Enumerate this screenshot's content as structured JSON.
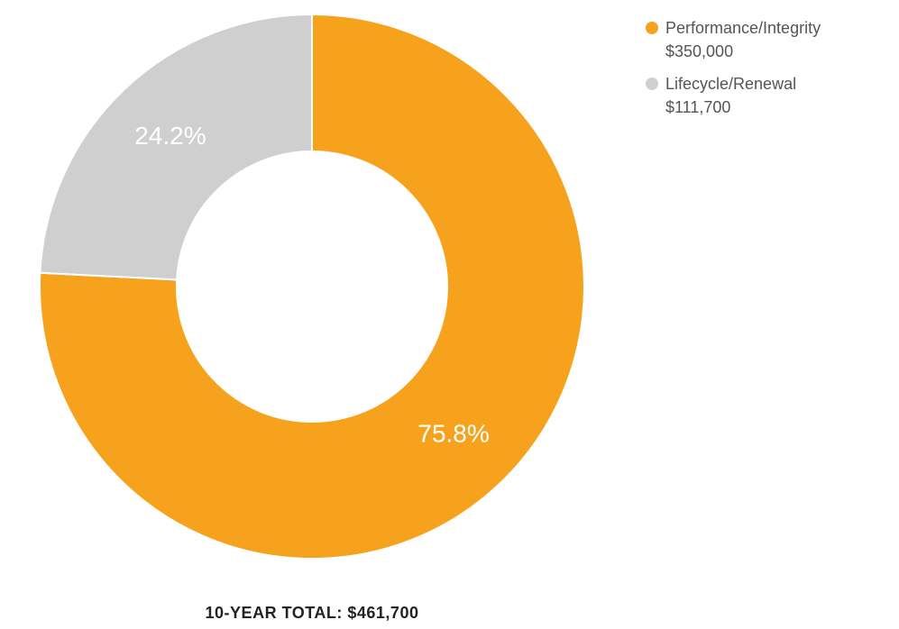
{
  "chart_data": {
    "type": "pie",
    "variant": "donut",
    "slices": [
      {
        "label": "Performance/Integrity",
        "value": 350000,
        "value_label": "$350,000",
        "percent_label": "75.8%",
        "color": "#F7A21D"
      },
      {
        "label": "Lifecycle/Renewal",
        "value": 111700,
        "value_label": "$111,700",
        "percent_label": "24.2%",
        "color": "#CFCFCF"
      }
    ],
    "legend_position": "top-right",
    "footer": "10-YEAR TOTAL: $461,700"
  }
}
